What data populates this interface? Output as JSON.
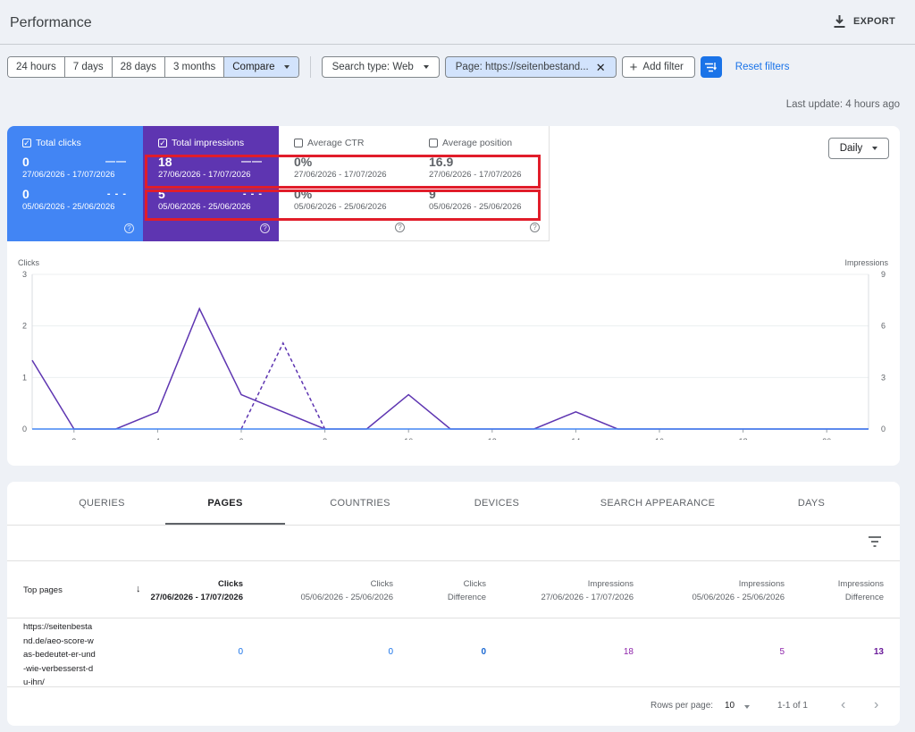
{
  "header": {
    "title": "Performance",
    "export_label": "EXPORT"
  },
  "filters": {
    "date_ranges": [
      "24 hours",
      "7 days",
      "28 days",
      "3 months"
    ],
    "compare_label": "Compare",
    "search_type": "Search type: Web",
    "page_filter": "Page: https://seitenbestand...",
    "add_filter": "Add filter",
    "reset_filters": "Reset filters"
  },
  "last_update": "Last update: 4 hours ago",
  "metrics": [
    {
      "label": "Total clicks",
      "checked": true,
      "value1": "0",
      "range1": "27/06/2026 - 17/07/2026",
      "value2": "0",
      "range2": "05/06/2026 - 25/06/2026"
    },
    {
      "label": "Total impressions",
      "checked": true,
      "value1": "18",
      "range1": "27/06/2026 - 17/07/2026",
      "value2": "5",
      "range2": "05/06/2026 - 25/06/2026"
    },
    {
      "label": "Average CTR",
      "checked": false,
      "value1": "0%",
      "range1": "27/06/2026 - 17/07/2026",
      "value2": "0%",
      "range2": "05/06/2026 - 25/06/2026"
    },
    {
      "label": "Average position",
      "checked": false,
      "value1": "16.9",
      "range1": "27/06/2026 - 17/07/2026",
      "value2": "9",
      "range2": "05/06/2026 - 25/06/2026"
    }
  ],
  "granularity": "Daily",
  "chart_data": {
    "type": "line",
    "y_left_label": "Clicks",
    "y_right_label": "Impressions",
    "y_left_ticks": [
      0,
      1,
      2,
      3
    ],
    "y_right_ticks": [
      0,
      3,
      6,
      9
    ],
    "ylim_left": [
      0,
      3
    ],
    "ylim_right": [
      0,
      9
    ],
    "x_ticks": [
      2,
      4,
      6,
      8,
      10,
      12,
      14,
      16,
      18,
      20
    ],
    "xlim": [
      1,
      21
    ],
    "colors": {
      "clicks": "#4285f4",
      "impressions": "#5e35b1"
    },
    "series": [
      {
        "axis": "right",
        "style": "solid",
        "color": "#5e35b1",
        "x": [
          1,
          2,
          3,
          4,
          5,
          6,
          7,
          8,
          9,
          10,
          11,
          12,
          13,
          14,
          15,
          16,
          17,
          18,
          19,
          20,
          21
        ],
        "values": [
          4,
          0,
          0,
          1,
          7,
          2,
          1,
          0,
          0,
          2,
          0,
          0,
          0,
          1,
          0,
          0,
          0,
          0,
          0,
          0,
          0
        ]
      },
      {
        "axis": "right",
        "style": "dashed",
        "color": "#5e35b1",
        "x": [
          6,
          7,
          8
        ],
        "values": [
          0,
          5,
          0
        ]
      },
      {
        "axis": "left",
        "style": "solid",
        "color": "#4285f4",
        "x": [
          1,
          21
        ],
        "values": [
          0,
          0
        ]
      }
    ]
  },
  "tabs": [
    "QUERIES",
    "PAGES",
    "COUNTRIES",
    "DEVICES",
    "SEARCH APPEARANCE",
    "DAYS"
  ],
  "table": {
    "first_col": "Top pages",
    "columns": [
      {
        "title": "Clicks",
        "sub": "27/06/2026 - 17/07/2026"
      },
      {
        "title": "Clicks",
        "sub": "05/06/2026 - 25/06/2026"
      },
      {
        "title": "Clicks",
        "sub": "Difference"
      },
      {
        "title": "Impressions",
        "sub": "27/06/2026 - 17/07/2026"
      },
      {
        "title": "Impressions",
        "sub": "05/06/2026 - 25/06/2026"
      },
      {
        "title": "Impressions",
        "sub": "Difference"
      }
    ],
    "rows": [
      {
        "url": "https://seitenbestand.de/aeo-score-was-bedeutet-er-und-wie-verbesserst-du-ihn/",
        "values": [
          "0",
          "0",
          "0",
          "18",
          "5",
          "13"
        ]
      }
    ]
  },
  "pager": {
    "rows_label": "Rows per page:",
    "rows_value": "10",
    "range": "1-1 of 1"
  }
}
